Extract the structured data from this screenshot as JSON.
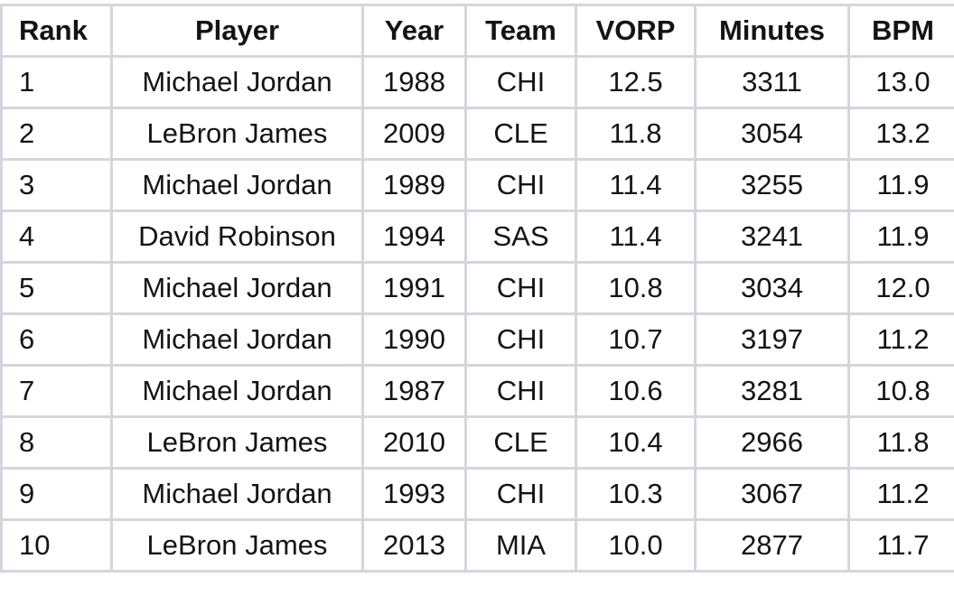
{
  "table": {
    "headers": [
      "Rank",
      "Player",
      "Year",
      "Team",
      "VORP",
      "Minutes",
      "BPM"
    ],
    "rows": [
      [
        "1",
        "Michael Jordan",
        "1988",
        "CHI",
        "12.5",
        "3311",
        "13.0"
      ],
      [
        "2",
        "LeBron James",
        "2009",
        "CLE",
        "11.8",
        "3054",
        "13.2"
      ],
      [
        "3",
        "Michael Jordan",
        "1989",
        "CHI",
        "11.4",
        "3255",
        "11.9"
      ],
      [
        "4",
        "David Robinson",
        "1994",
        "SAS",
        "11.4",
        "3241",
        "11.9"
      ],
      [
        "5",
        "Michael Jordan",
        "1991",
        "CHI",
        "10.8",
        "3034",
        "12.0"
      ],
      [
        "6",
        "Michael Jordan",
        "1990",
        "CHI",
        "10.7",
        "3197",
        "11.2"
      ],
      [
        "7",
        "Michael Jordan",
        "1987",
        "CHI",
        "10.6",
        "3281",
        "10.8"
      ],
      [
        "8",
        "LeBron James",
        "2010",
        "CLE",
        "10.4",
        "2966",
        "11.8"
      ],
      [
        "9",
        "Michael Jordan",
        "1993",
        "CHI",
        "10.3",
        "3067",
        "11.2"
      ],
      [
        "10",
        "LeBron James",
        "2013",
        "MIA",
        "10.0",
        "2877",
        "11.7"
      ]
    ]
  },
  "colors": {
    "border": "#d3d6dc",
    "text": "#141414",
    "background": "#ffffff"
  }
}
